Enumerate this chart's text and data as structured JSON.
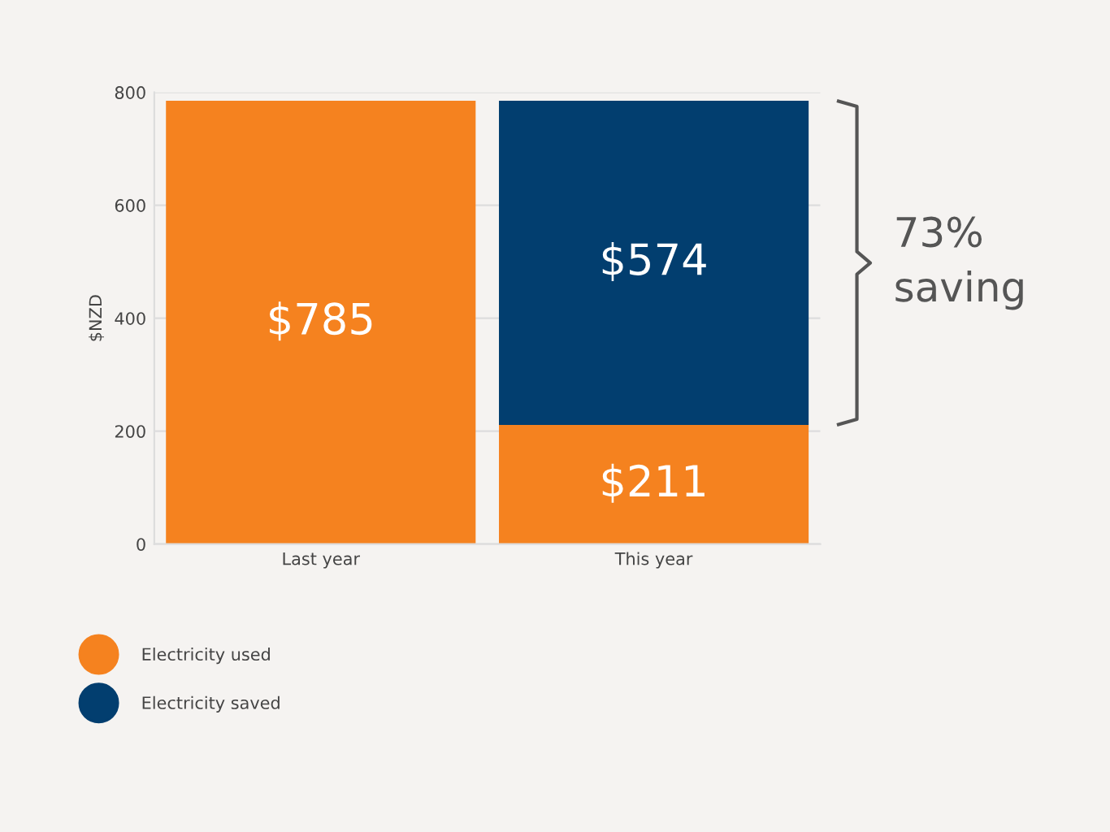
{
  "chart_data": {
    "type": "bar",
    "stacked": true,
    "ylabel": "$NZD",
    "categories": [
      "Last year",
      "This year"
    ],
    "series": [
      {
        "name": "Electricity used",
        "color": "#f5821f",
        "values": [
          785,
          211
        ],
        "value_labels": [
          "$785",
          "$211"
        ]
      },
      {
        "name": "Electricity saved",
        "color": "#023e6f",
        "values": [
          null,
          574
        ],
        "value_labels": [
          null,
          "$574"
        ]
      }
    ],
    "ylim": [
      0,
      800
    ],
    "yticks": [
      0,
      200,
      400,
      600,
      800
    ],
    "grid": "y",
    "legend": "bottom left",
    "annotations": [
      "73%\nsaving"
    ]
  }
}
